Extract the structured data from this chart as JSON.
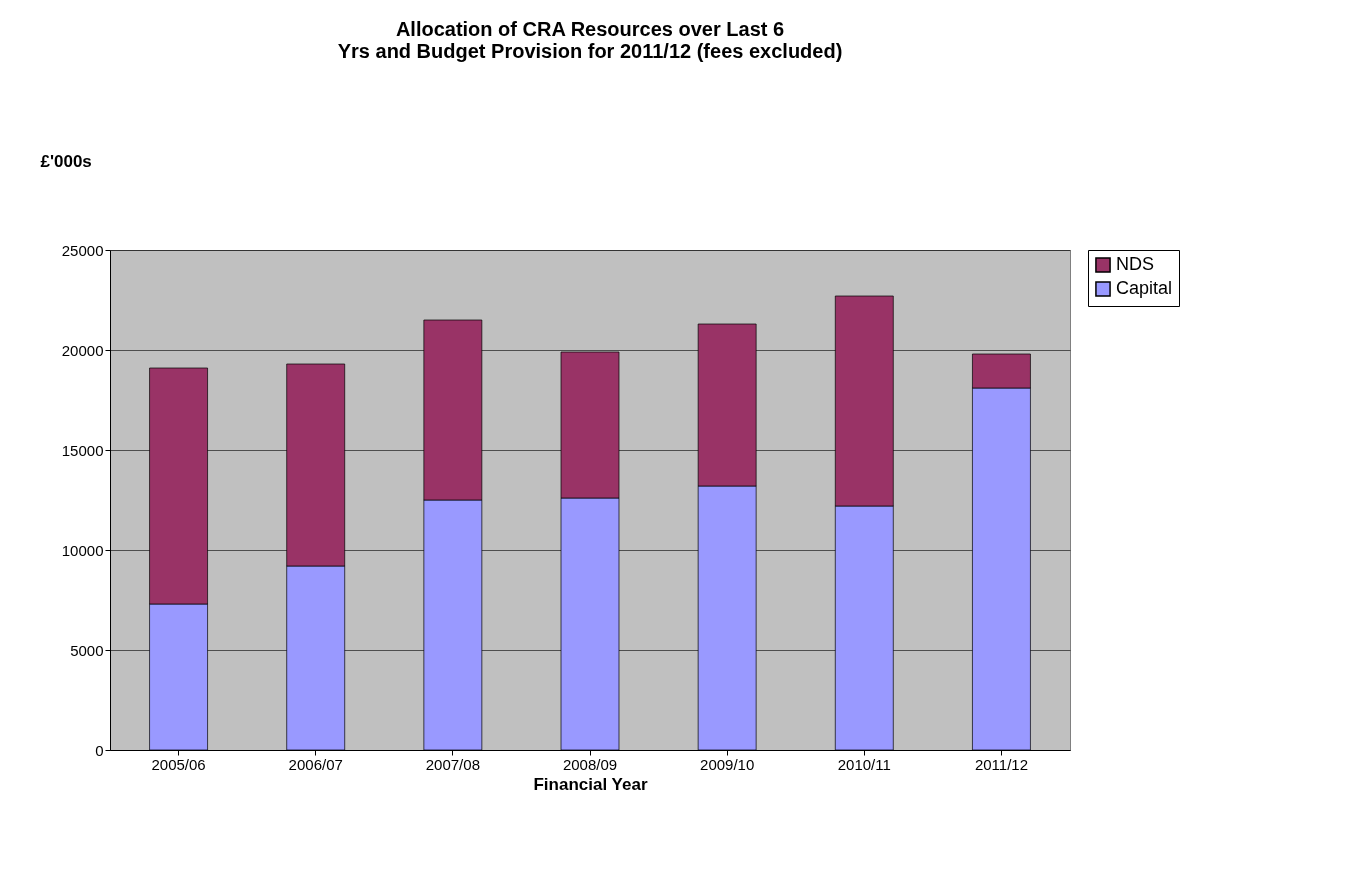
{
  "chart_data": {
    "type": "bar",
    "title": [
      "Allocation of CRA Resources over Last 6",
      "Yrs and Budget Provision for 2011/12 (fees excluded)"
    ],
    "xlabel": "Financial Year",
    "ylabel": "£'000s",
    "categories": [
      "2005/06",
      "2006/07",
      "2007/08",
      "2008/09",
      "2009/10",
      "2010/11",
      "2011/12"
    ],
    "series": [
      {
        "name": "Capital",
        "color": "#9999ff",
        "values": [
          7300,
          9200,
          12500,
          12600,
          13200,
          12200,
          18100
        ]
      },
      {
        "name": "NDS",
        "color": "#993366",
        "values": [
          11800,
          10100,
          9000,
          7300,
          8100,
          10500,
          1700
        ]
      }
    ],
    "stacked": true,
    "ylim": [
      0,
      25000
    ],
    "yticks": [
      0,
      5000,
      10000,
      15000,
      20000,
      25000
    ],
    "grid": "y",
    "legend": "right"
  }
}
